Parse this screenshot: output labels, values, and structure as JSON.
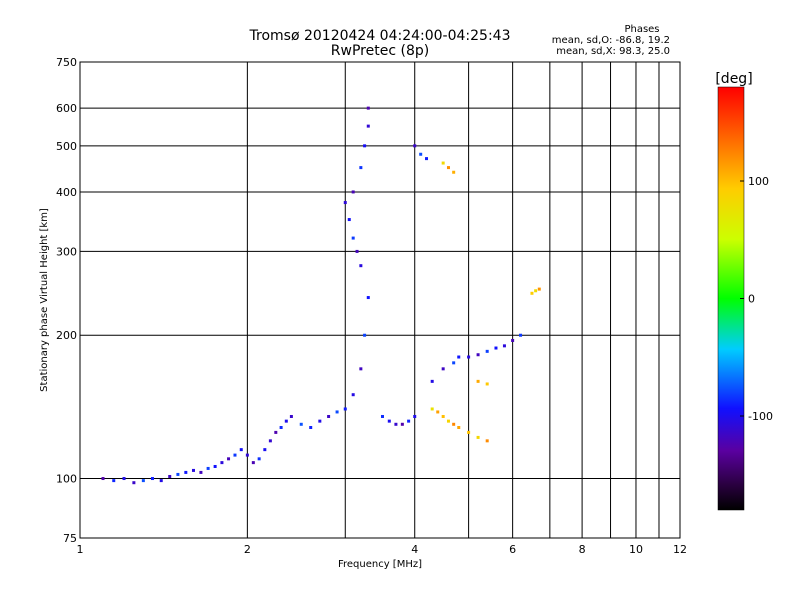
{
  "chart_data": {
    "type": "scatter",
    "title": "Tromsø 20120424 04:24:00-04:25:43",
    "subtitle": "RwPretec (8p)",
    "xlabel": "Frequency [MHz]",
    "ylabel": "Stationary phase Virtual Height [km]",
    "x_scale": "log",
    "y_scale": "log",
    "xlim": [
      1,
      12
    ],
    "ylim": [
      75,
      750
    ],
    "x_ticks": [
      1,
      2,
      4,
      6,
      8,
      10,
      12
    ],
    "x_tick_labels": [
      "1",
      "2",
      "4",
      "6",
      "8",
      "10",
      "12"
    ],
    "x_grid": [
      1,
      2,
      3,
      4,
      5,
      6,
      7,
      8,
      9,
      10,
      11,
      12
    ],
    "y_ticks": [
      75,
      100,
      200,
      300,
      400,
      500,
      600,
      750
    ],
    "y_tick_labels": [
      "75",
      "100",
      "200",
      "300",
      "400",
      "500",
      "600",
      "750"
    ],
    "grid": true,
    "legend": {
      "title": "Phases",
      "lines": [
        "mean, sd,O: -86.8, 19.2",
        "mean, sd,X:  98.3, 25.0"
      ],
      "placement": "top-right"
    },
    "colorbar": {
      "label": "[deg]",
      "min": -180,
      "max": 180,
      "ticks": [
        100,
        0,
        -100
      ],
      "tick_labels": [
        "100",
        "0",
        "-100"
      ],
      "colormap": "rainbow (black-purple-blue-cyan-green-yellow-orange-red)"
    },
    "series": [
      {
        "mode": "O",
        "note": "blue traces, phase approx -100 deg",
        "points": [
          [
            1.1,
            100
          ],
          [
            1.15,
            99
          ],
          [
            1.2,
            100
          ],
          [
            1.25,
            98
          ],
          [
            1.3,
            99
          ],
          [
            1.35,
            100
          ],
          [
            1.4,
            99
          ],
          [
            1.45,
            101
          ],
          [
            1.5,
            102
          ],
          [
            1.55,
            103
          ],
          [
            1.6,
            104
          ],
          [
            1.65,
            103
          ],
          [
            1.7,
            105
          ],
          [
            1.75,
            106
          ],
          [
            1.8,
            108
          ],
          [
            1.85,
            110
          ],
          [
            1.9,
            112
          ],
          [
            1.95,
            115
          ],
          [
            2.0,
            112
          ],
          [
            2.05,
            108
          ],
          [
            2.1,
            110
          ],
          [
            2.15,
            115
          ],
          [
            2.2,
            120
          ],
          [
            2.25,
            125
          ],
          [
            2.3,
            128
          ],
          [
            2.35,
            132
          ],
          [
            2.4,
            135
          ],
          [
            2.5,
            130
          ],
          [
            2.6,
            128
          ],
          [
            2.7,
            132
          ],
          [
            2.8,
            135
          ],
          [
            2.9,
            138
          ],
          [
            3.0,
            140
          ],
          [
            3.1,
            150
          ],
          [
            3.2,
            170
          ],
          [
            3.25,
            200
          ],
          [
            3.3,
            240
          ],
          [
            3.2,
            280
          ],
          [
            3.15,
            300
          ],
          [
            3.1,
            320
          ],
          [
            3.05,
            350
          ],
          [
            3.0,
            380
          ],
          [
            3.1,
            400
          ],
          [
            3.2,
            450
          ],
          [
            3.25,
            500
          ],
          [
            3.3,
            550
          ],
          [
            3.3,
            600
          ],
          [
            3.5,
            135
          ],
          [
            3.6,
            132
          ],
          [
            3.7,
            130
          ],
          [
            3.8,
            130
          ],
          [
            3.9,
            132
          ],
          [
            4.0,
            135
          ],
          [
            4.0,
            500
          ],
          [
            4.1,
            480
          ],
          [
            4.2,
            470
          ],
          [
            4.3,
            160
          ],
          [
            4.5,
            170
          ],
          [
            4.7,
            175
          ],
          [
            4.8,
            180
          ],
          [
            5.0,
            180
          ],
          [
            5.2,
            182
          ],
          [
            5.4,
            185
          ],
          [
            5.6,
            188
          ],
          [
            5.8,
            190
          ],
          [
            6.0,
            195
          ],
          [
            6.2,
            200
          ]
        ]
      },
      {
        "mode": "X",
        "note": "yellow/orange traces, phase approx +100 deg",
        "points": [
          [
            4.3,
            140
          ],
          [
            4.4,
            138
          ],
          [
            4.5,
            135
          ],
          [
            4.6,
            132
          ],
          [
            4.7,
            130
          ],
          [
            4.8,
            128
          ],
          [
            5.0,
            125
          ],
          [
            5.2,
            122
          ],
          [
            5.4,
            120
          ],
          [
            5.2,
            160
          ],
          [
            5.4,
            158
          ],
          [
            4.5,
            460
          ],
          [
            4.6,
            450
          ],
          [
            4.7,
            440
          ],
          [
            6.5,
            245
          ],
          [
            6.6,
            248
          ],
          [
            6.7,
            250
          ]
        ]
      }
    ]
  }
}
